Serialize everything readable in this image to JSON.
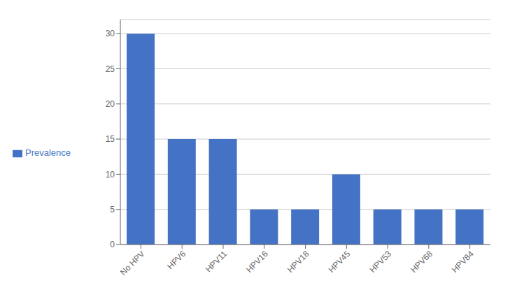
{
  "chart_data": {
    "type": "bar",
    "categories": [
      "No HPV",
      "HPV6",
      "HPV11",
      "HPV16",
      "HPV18",
      "HPV45",
      "HPV53",
      "HPV68",
      "HPV84"
    ],
    "series": [
      {
        "name": "Prevalence",
        "color": "#4472C4",
        "values": [
          30,
          15,
          15,
          5,
          5,
          10,
          5,
          5,
          5
        ]
      }
    ],
    "ylim": [
      0,
      32
    ],
    "yticks": [
      0,
      5,
      10,
      15,
      20,
      25,
      30
    ],
    "grid": true,
    "legend": "left"
  }
}
